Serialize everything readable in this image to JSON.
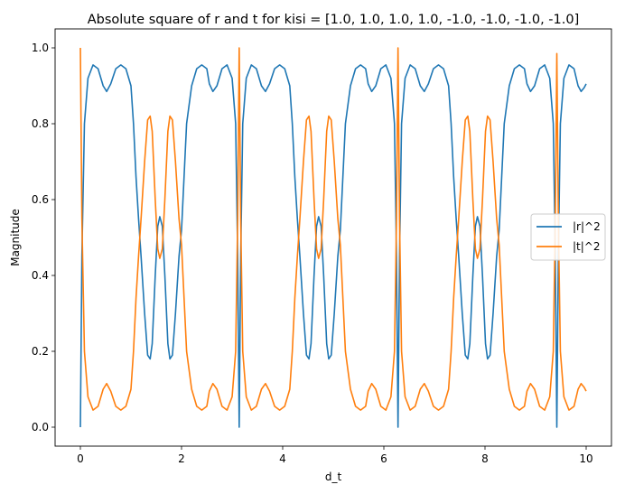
{
  "chart_data": {
    "type": "line",
    "title": "Absolute square of r and t for kisi = [1.0, 1.0, 1.0, 1.0, -1.0, -1.0, -1.0, -1.0]",
    "xlabel": "d_t",
    "ylabel": "Magnitude",
    "xlim": [
      -0.5,
      10.5
    ],
    "ylim": [
      -0.05,
      1.05
    ],
    "x_ticks": [
      0,
      2,
      4,
      6,
      8,
      10
    ],
    "y_ticks": [
      0.0,
      0.2,
      0.4,
      0.6,
      0.8,
      1.0
    ],
    "x_tick_labels": [
      "0",
      "2",
      "4",
      "6",
      "8",
      "10"
    ],
    "y_tick_labels": [
      "0.0",
      "0.2",
      "0.4",
      "0.6",
      "0.8",
      "1.0"
    ],
    "grid": false,
    "legend_position": "center-right",
    "series": [
      {
        "name": "|r|^2",
        "color": "#1f77b4",
        "points": [
          [
            0,
            0
          ],
          [
            0.03,
            0.45
          ],
          [
            0.08,
            0.8
          ],
          [
            0.15,
            0.92
          ],
          [
            0.25,
            0.955
          ],
          [
            0.35,
            0.945
          ],
          [
            0.45,
            0.9
          ],
          [
            0.52,
            0.885
          ],
          [
            0.6,
            0.905
          ],
          [
            0.7,
            0.945
          ],
          [
            0.8,
            0.955
          ],
          [
            0.9,
            0.945
          ],
          [
            1.0,
            0.9
          ],
          [
            1.05,
            0.8
          ],
          [
            1.1,
            0.66
          ],
          [
            1.15,
            0.55
          ],
          [
            1.2,
            0.45
          ],
          [
            1.27,
            0.3
          ],
          [
            1.33,
            0.19
          ],
          [
            1.38,
            0.18
          ],
          [
            1.42,
            0.22
          ],
          [
            1.48,
            0.4
          ],
          [
            1.53,
            0.53
          ],
          [
            1.57,
            0.555
          ],
          [
            1.62,
            0.53
          ],
          [
            1.67,
            0.4
          ],
          [
            1.73,
            0.22
          ],
          [
            1.77,
            0.18
          ],
          [
            1.82,
            0.19
          ],
          [
            1.88,
            0.3
          ],
          [
            1.95,
            0.45
          ],
          [
            2.0,
            0.52
          ],
          [
            2.05,
            0.66
          ],
          [
            2.1,
            0.8
          ],
          [
            2.2,
            0.9
          ],
          [
            2.3,
            0.945
          ],
          [
            2.4,
            0.955
          ],
          [
            2.5,
            0.945
          ],
          [
            2.55,
            0.905
          ],
          [
            2.62,
            0.885
          ],
          [
            2.7,
            0.9
          ],
          [
            2.8,
            0.945
          ],
          [
            2.9,
            0.955
          ],
          [
            3.0,
            0.92
          ],
          [
            3.07,
            0.8
          ],
          [
            3.11,
            0.45
          ],
          [
            3.14,
            0.0
          ],
          [
            3.17,
            0.45
          ],
          [
            3.21,
            0.8
          ],
          [
            3.28,
            0.92
          ],
          [
            3.38,
            0.955
          ],
          [
            3.48,
            0.945
          ],
          [
            3.58,
            0.9
          ],
          [
            3.66,
            0.885
          ],
          [
            3.74,
            0.905
          ],
          [
            3.84,
            0.945
          ],
          [
            3.94,
            0.955
          ],
          [
            4.04,
            0.945
          ],
          [
            4.14,
            0.9
          ],
          [
            4.19,
            0.8
          ],
          [
            4.24,
            0.66
          ],
          [
            4.29,
            0.55
          ],
          [
            4.34,
            0.45
          ],
          [
            4.41,
            0.3
          ],
          [
            4.47,
            0.19
          ],
          [
            4.52,
            0.18
          ],
          [
            4.56,
            0.22
          ],
          [
            4.62,
            0.4
          ],
          [
            4.67,
            0.53
          ],
          [
            4.71,
            0.555
          ],
          [
            4.76,
            0.53
          ],
          [
            4.81,
            0.4
          ],
          [
            4.87,
            0.22
          ],
          [
            4.91,
            0.18
          ],
          [
            4.96,
            0.19
          ],
          [
            5.02,
            0.3
          ],
          [
            5.09,
            0.45
          ],
          [
            5.14,
            0.52
          ],
          [
            5.19,
            0.66
          ],
          [
            5.24,
            0.8
          ],
          [
            5.34,
            0.9
          ],
          [
            5.44,
            0.945
          ],
          [
            5.54,
            0.955
          ],
          [
            5.64,
            0.945
          ],
          [
            5.69,
            0.905
          ],
          [
            5.76,
            0.885
          ],
          [
            5.84,
            0.9
          ],
          [
            5.94,
            0.945
          ],
          [
            6.04,
            0.955
          ],
          [
            6.14,
            0.92
          ],
          [
            6.21,
            0.8
          ],
          [
            6.25,
            0.45
          ],
          [
            6.28,
            0.0
          ],
          [
            6.31,
            0.45
          ],
          [
            6.35,
            0.8
          ],
          [
            6.42,
            0.92
          ],
          [
            6.52,
            0.955
          ],
          [
            6.62,
            0.945
          ],
          [
            6.72,
            0.9
          ],
          [
            6.8,
            0.885
          ],
          [
            6.88,
            0.905
          ],
          [
            6.98,
            0.945
          ],
          [
            7.08,
            0.955
          ],
          [
            7.18,
            0.945
          ],
          [
            7.28,
            0.9
          ],
          [
            7.33,
            0.8
          ],
          [
            7.38,
            0.66
          ],
          [
            7.43,
            0.55
          ],
          [
            7.48,
            0.45
          ],
          [
            7.55,
            0.3
          ],
          [
            7.61,
            0.19
          ],
          [
            7.66,
            0.18
          ],
          [
            7.7,
            0.22
          ],
          [
            7.76,
            0.4
          ],
          [
            7.81,
            0.53
          ],
          [
            7.85,
            0.555
          ],
          [
            7.9,
            0.53
          ],
          [
            7.95,
            0.4
          ],
          [
            8.01,
            0.22
          ],
          [
            8.05,
            0.18
          ],
          [
            8.1,
            0.19
          ],
          [
            8.16,
            0.3
          ],
          [
            8.23,
            0.45
          ],
          [
            8.28,
            0.52
          ],
          [
            8.33,
            0.66
          ],
          [
            8.38,
            0.8
          ],
          [
            8.48,
            0.9
          ],
          [
            8.58,
            0.945
          ],
          [
            8.68,
            0.955
          ],
          [
            8.78,
            0.945
          ],
          [
            8.83,
            0.905
          ],
          [
            8.9,
            0.885
          ],
          [
            8.98,
            0.9
          ],
          [
            9.08,
            0.945
          ],
          [
            9.18,
            0.955
          ],
          [
            9.28,
            0.92
          ],
          [
            9.35,
            0.8
          ],
          [
            9.39,
            0.45
          ],
          [
            9.42,
            0.0
          ],
          [
            9.45,
            0.45
          ],
          [
            9.49,
            0.8
          ],
          [
            9.56,
            0.92
          ],
          [
            9.66,
            0.955
          ],
          [
            9.76,
            0.945
          ],
          [
            9.84,
            0.9
          ],
          [
            9.9,
            0.885
          ],
          [
            9.96,
            0.895
          ],
          [
            10.0,
            0.905
          ]
        ]
      },
      {
        "name": "|t|^2",
        "color": "#ff7f0e",
        "points": [
          [
            0,
            1.0
          ],
          [
            0.03,
            0.55
          ],
          [
            0.08,
            0.2
          ],
          [
            0.15,
            0.08
          ],
          [
            0.25,
            0.045
          ],
          [
            0.35,
            0.055
          ],
          [
            0.45,
            0.1
          ],
          [
            0.52,
            0.115
          ],
          [
            0.6,
            0.095
          ],
          [
            0.7,
            0.055
          ],
          [
            0.8,
            0.045
          ],
          [
            0.9,
            0.055
          ],
          [
            1.0,
            0.1
          ],
          [
            1.05,
            0.2
          ],
          [
            1.1,
            0.34
          ],
          [
            1.15,
            0.45
          ],
          [
            1.2,
            0.55
          ],
          [
            1.27,
            0.7
          ],
          [
            1.33,
            0.81
          ],
          [
            1.38,
            0.82
          ],
          [
            1.42,
            0.78
          ],
          [
            1.48,
            0.6
          ],
          [
            1.53,
            0.47
          ],
          [
            1.57,
            0.445
          ],
          [
            1.62,
            0.47
          ],
          [
            1.67,
            0.6
          ],
          [
            1.73,
            0.78
          ],
          [
            1.77,
            0.82
          ],
          [
            1.82,
            0.81
          ],
          [
            1.88,
            0.7
          ],
          [
            1.95,
            0.55
          ],
          [
            2.0,
            0.48
          ],
          [
            2.05,
            0.34
          ],
          [
            2.1,
            0.2
          ],
          [
            2.2,
            0.1
          ],
          [
            2.3,
            0.055
          ],
          [
            2.4,
            0.045
          ],
          [
            2.5,
            0.055
          ],
          [
            2.55,
            0.095
          ],
          [
            2.62,
            0.115
          ],
          [
            2.7,
            0.1
          ],
          [
            2.8,
            0.055
          ],
          [
            2.9,
            0.045
          ],
          [
            3.0,
            0.08
          ],
          [
            3.07,
            0.2
          ],
          [
            3.11,
            0.55
          ],
          [
            3.14,
            1.0
          ],
          [
            3.17,
            0.55
          ],
          [
            3.21,
            0.2
          ],
          [
            3.28,
            0.08
          ],
          [
            3.38,
            0.045
          ],
          [
            3.48,
            0.055
          ],
          [
            3.58,
            0.1
          ],
          [
            3.66,
            0.115
          ],
          [
            3.74,
            0.095
          ],
          [
            3.84,
            0.055
          ],
          [
            3.94,
            0.045
          ],
          [
            4.04,
            0.055
          ],
          [
            4.14,
            0.1
          ],
          [
            4.19,
            0.2
          ],
          [
            4.24,
            0.34
          ],
          [
            4.29,
            0.45
          ],
          [
            4.34,
            0.55
          ],
          [
            4.41,
            0.7
          ],
          [
            4.47,
            0.81
          ],
          [
            4.52,
            0.82
          ],
          [
            4.56,
            0.78
          ],
          [
            4.62,
            0.6
          ],
          [
            4.67,
            0.47
          ],
          [
            4.71,
            0.445
          ],
          [
            4.76,
            0.47
          ],
          [
            4.81,
            0.6
          ],
          [
            4.87,
            0.78
          ],
          [
            4.91,
            0.82
          ],
          [
            4.96,
            0.81
          ],
          [
            5.02,
            0.7
          ],
          [
            5.09,
            0.55
          ],
          [
            5.14,
            0.48
          ],
          [
            5.19,
            0.34
          ],
          [
            5.24,
            0.2
          ],
          [
            5.34,
            0.1
          ],
          [
            5.44,
            0.055
          ],
          [
            5.54,
            0.045
          ],
          [
            5.64,
            0.055
          ],
          [
            5.69,
            0.095
          ],
          [
            5.76,
            0.115
          ],
          [
            5.84,
            0.1
          ],
          [
            5.94,
            0.055
          ],
          [
            6.04,
            0.045
          ],
          [
            6.14,
            0.08
          ],
          [
            6.21,
            0.2
          ],
          [
            6.25,
            0.55
          ],
          [
            6.28,
            1.0
          ],
          [
            6.31,
            0.55
          ],
          [
            6.35,
            0.2
          ],
          [
            6.42,
            0.08
          ],
          [
            6.52,
            0.045
          ],
          [
            6.62,
            0.055
          ],
          [
            6.72,
            0.1
          ],
          [
            6.8,
            0.115
          ],
          [
            6.88,
            0.095
          ],
          [
            6.98,
            0.055
          ],
          [
            7.08,
            0.045
          ],
          [
            7.18,
            0.055
          ],
          [
            7.28,
            0.1
          ],
          [
            7.33,
            0.2
          ],
          [
            7.38,
            0.34
          ],
          [
            7.43,
            0.45
          ],
          [
            7.48,
            0.55
          ],
          [
            7.55,
            0.7
          ],
          [
            7.61,
            0.81
          ],
          [
            7.66,
            0.82
          ],
          [
            7.7,
            0.78
          ],
          [
            7.76,
            0.6
          ],
          [
            7.81,
            0.47
          ],
          [
            7.85,
            0.445
          ],
          [
            7.9,
            0.47
          ],
          [
            7.95,
            0.6
          ],
          [
            8.01,
            0.78
          ],
          [
            8.05,
            0.82
          ],
          [
            8.1,
            0.81
          ],
          [
            8.16,
            0.7
          ],
          [
            8.23,
            0.55
          ],
          [
            8.28,
            0.48
          ],
          [
            8.33,
            0.34
          ],
          [
            8.38,
            0.2
          ],
          [
            8.48,
            0.1
          ],
          [
            8.58,
            0.055
          ],
          [
            8.68,
            0.045
          ],
          [
            8.78,
            0.055
          ],
          [
            8.83,
            0.095
          ],
          [
            8.9,
            0.115
          ],
          [
            8.98,
            0.1
          ],
          [
            9.08,
            0.055
          ],
          [
            9.18,
            0.045
          ],
          [
            9.28,
            0.08
          ],
          [
            9.35,
            0.2
          ],
          [
            9.39,
            0.55
          ],
          [
            9.42,
            0.985
          ],
          [
            9.45,
            0.55
          ],
          [
            9.49,
            0.2
          ],
          [
            9.56,
            0.08
          ],
          [
            9.66,
            0.045
          ],
          [
            9.76,
            0.055
          ],
          [
            9.84,
            0.1
          ],
          [
            9.9,
            0.115
          ],
          [
            9.96,
            0.105
          ],
          [
            10.0,
            0.095
          ]
        ]
      }
    ]
  }
}
